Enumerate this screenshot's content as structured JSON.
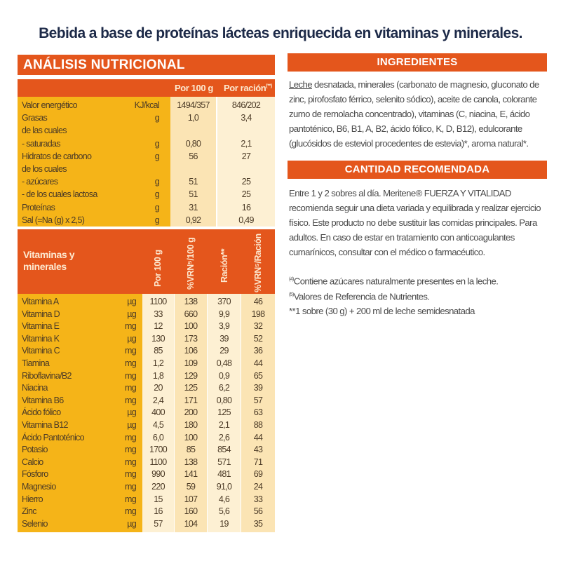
{
  "title": "Bebida a base de proteínas lácteas enriquecida en vitaminas y minerales.",
  "colors": {
    "orange": "#e4561c",
    "yellow": "#f5b418",
    "cream": "#fbe4b4",
    "light": "#fdf0d3",
    "title": "#1d2a48"
  },
  "analysis": {
    "heading": "ANÁLISIS NUTRICIONAL",
    "col_100g": "Por 100 g",
    "col_racion": "Por ración",
    "col_racion_sup": "(**)",
    "rows": [
      {
        "label": "Valor energético",
        "unit": "KJ/kcal",
        "per100": "1494/357",
        "racion": "846/202"
      },
      {
        "label": "Grasas",
        "unit": "g",
        "per100": "1,0",
        "racion": "3,4"
      },
      {
        "label": "de las cuales",
        "unit": "",
        "per100": "",
        "racion": ""
      },
      {
        "label": "- saturadas",
        "unit": "g",
        "per100": "0,80",
        "racion": "2,1"
      },
      {
        "label": "Hidratos de carbono",
        "unit": "g",
        "per100": "56",
        "racion": "27"
      },
      {
        "label": "de los cuales",
        "unit": "",
        "per100": "",
        "racion": ""
      },
      {
        "label": "- azúcares",
        "unit": "g",
        "per100": "51",
        "racion": "25"
      },
      {
        "label": "- de los cuales lactosa",
        "unit": "g",
        "per100": "51",
        "racion": "25"
      },
      {
        "label": "Proteínas",
        "unit": "g",
        "per100": "31",
        "racion": "16"
      },
      {
        "label": "Sal (=Na (g) x 2,5)",
        "unit": "g",
        "per100": "0,92",
        "racion": "0,49"
      }
    ]
  },
  "vitamins": {
    "heading": "Vitaminas y minerales",
    "cols": [
      "Por 100 g",
      "%VRN⁵/100 g",
      "Ración**",
      "%VRN⁵/Ración"
    ],
    "rows": [
      {
        "label": "Vitamina A",
        "unit": "µg",
        "v": [
          "1100",
          "138",
          "370",
          "46"
        ]
      },
      {
        "label": "Vitamina D",
        "unit": "µg",
        "v": [
          "33",
          "660",
          "9,9",
          "198"
        ]
      },
      {
        "label": "Vitamina E",
        "unit": "mg",
        "v": [
          "12",
          "100",
          "3,9",
          "32"
        ]
      },
      {
        "label": "Vitamina K",
        "unit": "µg",
        "v": [
          "130",
          "173",
          "39",
          "52"
        ]
      },
      {
        "label": "Vitamina C",
        "unit": "mg",
        "v": [
          "85",
          "106",
          "29",
          "36"
        ]
      },
      {
        "label": "Tiamina",
        "unit": "mg",
        "v": [
          "1,2",
          "109",
          "0,48",
          "44"
        ]
      },
      {
        "label": "Riboflavina/B2",
        "unit": "mg",
        "v": [
          "1,8",
          "129",
          "0,9",
          "65"
        ]
      },
      {
        "label": "Niacina",
        "unit": "mg",
        "v": [
          "20",
          "125",
          "6,2",
          "39"
        ]
      },
      {
        "label": "Vitamina B6",
        "unit": "mg",
        "v": [
          "2,4",
          "171",
          "0,80",
          "57"
        ]
      },
      {
        "label": "Ácido fólico",
        "unit": "µg",
        "v": [
          "400",
          "200",
          "125",
          "63"
        ]
      },
      {
        "label": "Vitamina B12",
        "unit": "µg",
        "v": [
          "4,5",
          "180",
          "2,1",
          "88"
        ]
      },
      {
        "label": "Ácido Pantoténico",
        "unit": "mg",
        "v": [
          "6,0",
          "100",
          "2,6",
          "44"
        ]
      },
      {
        "label": "Potasio",
        "unit": "mg",
        "v": [
          "1700",
          "85",
          "854",
          "43"
        ]
      },
      {
        "label": "Calcio",
        "unit": "mg",
        "v": [
          "1100",
          "138",
          "571",
          "71"
        ]
      },
      {
        "label": "Fósforo",
        "unit": "mg",
        "v": [
          "990",
          "141",
          "481",
          "69"
        ]
      },
      {
        "label": "Magnesio",
        "unit": "mg",
        "v": [
          "220",
          "59",
          "91,0",
          "24"
        ]
      },
      {
        "label": "Hierro",
        "unit": "mg",
        "v": [
          "15",
          "107",
          "4,6",
          "33"
        ]
      },
      {
        "label": "Zinc",
        "unit": "mg",
        "v": [
          "16",
          "160",
          "5,6",
          "56"
        ]
      },
      {
        "label": "Selenio",
        "unit": "µg",
        "v": [
          "57",
          "104",
          "19",
          "35"
        ]
      }
    ]
  },
  "ingredients": {
    "heading": "INGREDIENTES",
    "underlined": "Leche",
    "text": " desnatada, minerales (carbonato de magnesio, gluconato de zinc, pirofosfato férrico, selenito sódico), aceite de canola, colorante zumo de remolacha concentrado), vitaminas (C, niacina, E, ácido pantoténico, B6, B1, A, B2, ácido fólico, K, D, B12), edulcorante (glucósidos de esteviol procedentes de estevia)*, aroma natural*."
  },
  "recommended": {
    "heading": "CANTIDAD RECOMENDADA",
    "text": "Entre 1 y 2 sobres al día. Meritene® FUERZA Y VITALIDAD recomienda seguir una dieta variada y equilibrada y realizar ejercicio físico. Este producto no debe sustituir las comidas principales. Para adultos. En caso de estar en tratamiento con anticoagulantes cumarínicos, consultar con el médico o farmacéutico."
  },
  "footnotes": [
    {
      "mark": "(4)",
      "text": "Contiene azúcares naturalmente presentes en la leche."
    },
    {
      "mark": "(5)",
      "text": "Valores de Referencia de Nutrientes."
    },
    {
      "mark": "",
      "text": "**1 sobre (30 g) + 200 ml de leche semidesnatada"
    }
  ]
}
